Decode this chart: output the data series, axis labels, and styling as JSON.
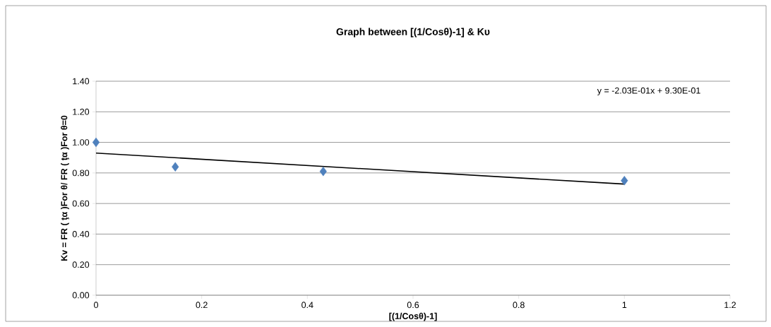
{
  "chart_data": {
    "type": "scatter",
    "title": "Graph between [(1/Cosθ)-1] & Kυ",
    "xlabel": "[(1/Cosθ)-1]",
    "ylabel": "Kv = FR ( ţα )For θ/ FR ( ţα )For θ=0",
    "annotations": [
      "y = -2.03E-01x + 9.30E-01"
    ],
    "series": [
      {
        "color": "#4f81bd",
        "x": [
          0,
          0.15,
          0.43,
          1.0
        ],
        "values": [
          1.0,
          0.84,
          0.81,
          0.75
        ]
      },
      {
        "type": "line",
        "color": "#000000",
        "marker": "none",
        "x": [
          0,
          1.0
        ],
        "values": [
          0.93,
          0.727
        ]
      }
    ],
    "xlim": [
      0,
      1.2
    ],
    "xticks": [
      0,
      0.2,
      0.4,
      0.6,
      0.8,
      1,
      1.2
    ],
    "ylim": [
      0,
      1.4
    ],
    "yticks": [
      {
        "value": 0,
        "label": "0.00"
      },
      {
        "value": 0.2,
        "label": "0.20"
      },
      {
        "value": 0.4,
        "label": "0.40"
      },
      {
        "value": 0.6,
        "label": "0.60"
      },
      {
        "value": 0.8,
        "label": "0.80"
      },
      {
        "value": 1.0,
        "label": "1.00"
      },
      {
        "value": 1.2,
        "label": "1.20"
      },
      {
        "value": 1.4,
        "label": "1.40"
      }
    ],
    "grid": "y",
    "legend": false,
    "marker": "diamond"
  }
}
